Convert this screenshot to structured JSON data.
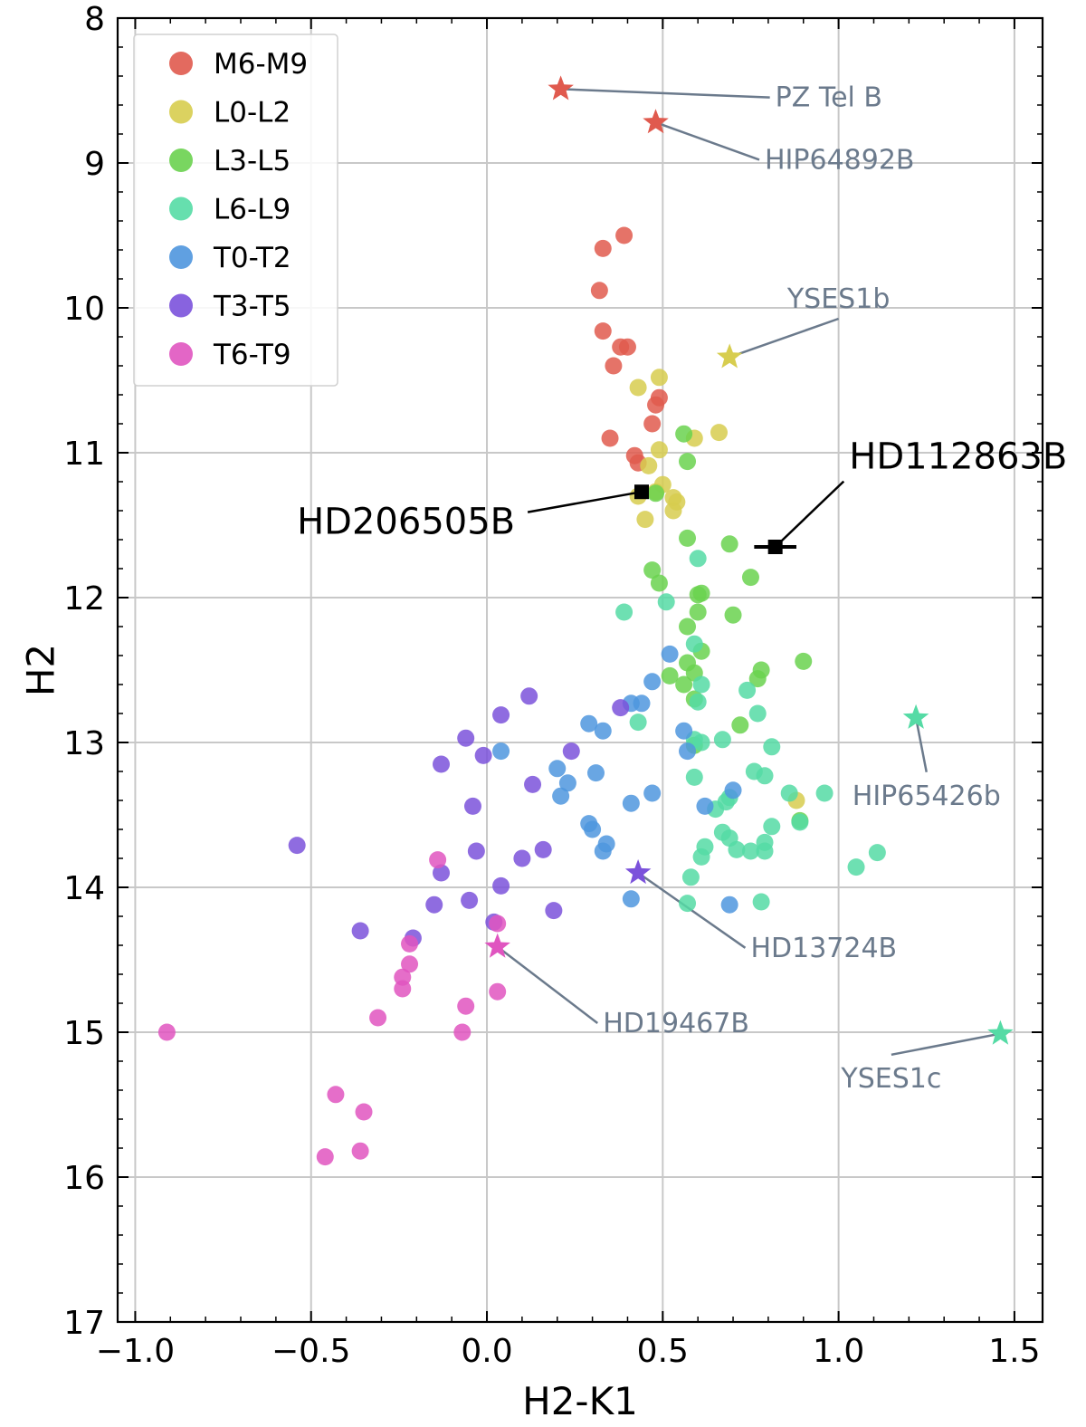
{
  "chart_data": {
    "type": "scatter",
    "xlabel": "H2-K1",
    "ylabel": "H2",
    "xlim": [
      -1.05,
      1.58
    ],
    "ylim": [
      17,
      8
    ],
    "y_inverted": true,
    "grid": true,
    "x_ticks": [
      -1.0,
      -0.5,
      0.0,
      0.5,
      1.0,
      1.5
    ],
    "x_tick_labels": [
      "−1.0",
      "−0.5",
      "0.0",
      "0.5",
      "1.0",
      "1.5"
    ],
    "y_ticks": [
      8,
      9,
      10,
      11,
      12,
      13,
      14,
      15,
      16,
      17
    ],
    "y_tick_labels": [
      "8",
      "9",
      "10",
      "11",
      "12",
      "13",
      "14",
      "15",
      "16",
      "17"
    ],
    "legend_position": "top-left",
    "series": [
      {
        "name": "M6-M9",
        "color": "#e05a4e",
        "x": [
          0.39,
          0.33,
          0.32,
          0.33,
          0.38,
          0.4,
          0.36,
          0.49,
          0.48,
          0.47,
          0.35,
          0.42,
          0.43
        ],
        "y": [
          9.5,
          9.59,
          9.88,
          10.16,
          10.27,
          10.27,
          10.4,
          10.62,
          10.67,
          10.8,
          10.9,
          11.02,
          11.07
        ]
      },
      {
        "name": "L0-L2",
        "color": "#d7cd4f",
        "x": [
          0.49,
          0.43,
          0.66,
          0.59,
          0.49,
          0.46,
          0.5,
          0.48,
          0.53,
          0.43,
          0.54,
          0.53,
          0.45,
          0.88
        ],
        "y": [
          10.48,
          10.55,
          10.86,
          10.9,
          10.98,
          11.09,
          11.22,
          11.27,
          11.31,
          11.3,
          11.34,
          11.4,
          11.46,
          13.4
        ],
        "y_note": "approximate"
      },
      {
        "name": "L3-L5",
        "color": "#6ad24f",
        "x": [
          0.56,
          0.57,
          0.48,
          0.57,
          0.69,
          0.47,
          0.49,
          0.75,
          0.6,
          0.61,
          0.6,
          0.57,
          0.7,
          0.61,
          0.57,
          0.78,
          0.9,
          0.52,
          0.56,
          0.59,
          0.77,
          0.72,
          0.59,
          0.89,
          0.59
        ],
        "y": [
          10.87,
          11.06,
          11.28,
          11.59,
          11.63,
          11.81,
          11.9,
          11.86,
          11.98,
          11.97,
          12.1,
          12.2,
          12.12,
          12.37,
          12.45,
          12.5,
          12.44,
          12.54,
          12.6,
          12.52,
          12.56,
          12.88,
          12.7,
          13.54,
          13.02
        ]
      },
      {
        "name": "L6-L9",
        "color": "#55dba5",
        "x": [
          0.6,
          0.39,
          0.51,
          0.59,
          0.61,
          0.74,
          0.6,
          0.77,
          0.43,
          0.59,
          0.67,
          0.61,
          0.76,
          0.81,
          0.79,
          0.59,
          0.86,
          0.96,
          0.69,
          0.89,
          0.65,
          0.81,
          0.67,
          0.79,
          0.62,
          0.69,
          0.61,
          0.71,
          0.75,
          0.58,
          0.68,
          0.79,
          0.78,
          1.11,
          1.05,
          0.57
        ],
        "y": [
          11.73,
          12.1,
          12.03,
          12.32,
          12.6,
          12.64,
          12.72,
          12.8,
          12.86,
          12.98,
          12.98,
          13.0,
          13.2,
          13.03,
          13.23,
          13.24,
          13.35,
          13.35,
          13.38,
          13.55,
          13.46,
          13.58,
          13.62,
          13.69,
          13.72,
          13.66,
          13.79,
          13.74,
          13.75,
          13.93,
          13.41,
          13.75,
          14.1,
          13.76,
          13.86,
          14.11
        ]
      },
      {
        "name": "T0-T2",
        "color": "#4f96de",
        "x": [
          0.52,
          0.47,
          0.41,
          0.44,
          0.29,
          0.33,
          0.04,
          0.56,
          0.57,
          0.2,
          0.31,
          0.23,
          0.7,
          0.47,
          0.21,
          0.41,
          0.62,
          0.29,
          0.3,
          0.33,
          0.34,
          0.41,
          0.69
        ],
        "y": [
          12.39,
          12.58,
          12.73,
          12.73,
          12.87,
          12.92,
          13.06,
          12.92,
          13.06,
          13.18,
          13.21,
          13.28,
          13.33,
          13.35,
          13.37,
          13.42,
          13.44,
          13.56,
          13.6,
          13.75,
          13.7,
          14.08,
          14.12
        ]
      },
      {
        "name": "T3-T5",
        "color": "#7b52db",
        "x": [
          0.12,
          0.38,
          0.04,
          0.24,
          -0.06,
          -0.13,
          -0.01,
          0.13,
          -0.04,
          -0.54,
          0.1,
          0.16,
          -0.03,
          -0.13,
          0.04,
          -0.15,
          -0.05,
          0.19,
          0.02,
          -0.36,
          -0.21
        ],
        "y": [
          12.68,
          12.76,
          12.81,
          13.06,
          12.97,
          13.15,
          13.09,
          13.29,
          13.44,
          13.71,
          13.8,
          13.74,
          13.75,
          13.9,
          13.99,
          14.12,
          14.09,
          14.16,
          14.24,
          14.3,
          14.35
        ]
      },
      {
        "name": "T6-T9",
        "color": "#e055c0",
        "x": [
          -0.14,
          0.03,
          -0.22,
          -0.24,
          -0.24,
          -0.22,
          -0.31,
          -0.06,
          0.03,
          -0.91,
          -0.07,
          -0.43,
          -0.35,
          -0.36,
          -0.46
        ],
        "y": [
          13.81,
          14.25,
          14.39,
          14.62,
          14.7,
          14.53,
          14.9,
          14.82,
          14.72,
          15.0,
          15.0,
          15.43,
          15.55,
          15.82,
          15.86
        ]
      }
    ],
    "labeled_objects": [
      {
        "name": "PZ Tel B",
        "x": 0.21,
        "y": 8.49,
        "color": "#e05a4e",
        "label_x": 0.82,
        "label_y": 8.61,
        "label_anchor": "start"
      },
      {
        "name": "HIP64892B",
        "x": 0.48,
        "y": 8.72,
        "color": "#e05a4e",
        "label_x": 0.79,
        "label_y": 9.04,
        "label_anchor": "start"
      },
      {
        "name": "YSES1b",
        "x": 0.69,
        "y": 10.34,
        "color": "#d7cd4f",
        "label_x": 1.0,
        "label_y": 10.0,
        "label_anchor": "middle"
      },
      {
        "name": "HIP65426b",
        "x": 1.22,
        "y": 12.83,
        "color": "#55dba5",
        "label_x": 1.25,
        "label_y": 13.43,
        "label_anchor": "middle"
      },
      {
        "name": "HD13724B",
        "x": 0.43,
        "y": 13.9,
        "color": "#7b52db",
        "label_x": 0.75,
        "label_y": 14.48,
        "label_anchor": "start"
      },
      {
        "name": "HD19467B",
        "x": 0.03,
        "y": 14.41,
        "color": "#e055c0",
        "label_x": 0.33,
        "label_y": 15.0,
        "label_anchor": "start"
      },
      {
        "name": "YSES1c",
        "x": 1.46,
        "y": 15.01,
        "color": "#55dba5",
        "label_x": 1.15,
        "label_y": 15.38,
        "label_anchor": "middle"
      }
    ],
    "targets": [
      {
        "name": "HD206505B",
        "x": 0.44,
        "y": 11.27,
        "xerr": 0.0,
        "yerr": 0.0,
        "label_x": 0.08,
        "label_y": 11.56,
        "label_anchor": "end"
      },
      {
        "name": "HD112863B",
        "x": 0.82,
        "y": 11.65,
        "xerr": 0.06,
        "yerr": 0.05,
        "label_x": 1.03,
        "label_y": 11.11,
        "label_anchor": "start"
      }
    ]
  }
}
